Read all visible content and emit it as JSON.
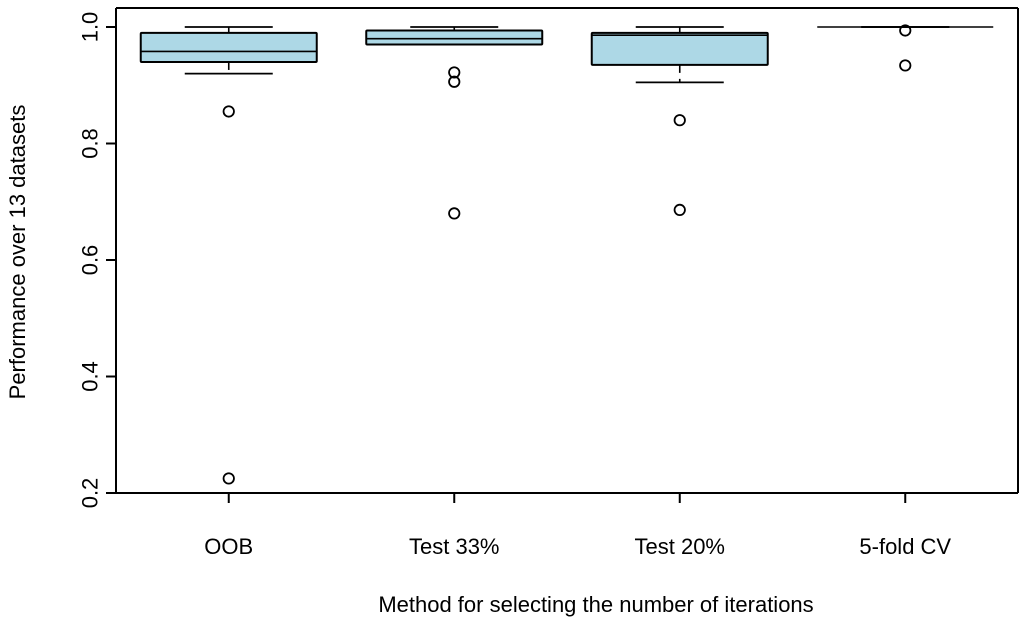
{
  "chart_data": {
    "type": "boxplot",
    "xlabel": "Method for selecting the number of iterations",
    "ylabel": "Performance over 13 datasets",
    "ylim": [
      0.2,
      1.0
    ],
    "yticks": [
      0.2,
      0.4,
      0.6,
      0.8,
      1.0
    ],
    "ytick_labels": [
      "0.2",
      "0.4",
      "0.6",
      "0.8",
      "1.0"
    ],
    "box_color": "#add8e6",
    "categories": [
      "OOB",
      "Test 33%",
      "Test 20%",
      "5-fold CV"
    ],
    "boxes": [
      {
        "label": "OOB",
        "q1": 0.94,
        "median": 0.958,
        "q3": 0.99,
        "whisker_low": 0.92,
        "whisker_high": 1.0,
        "outliers": [
          0.855,
          0.225
        ]
      },
      {
        "label": "Test 33%",
        "q1": 0.97,
        "median": 0.98,
        "q3": 0.994,
        "whisker_low": 0.97,
        "whisker_high": 1.0,
        "outliers": [
          0.922,
          0.906,
          0.68
        ]
      },
      {
        "label": "Test 20%",
        "q1": 0.935,
        "median": 0.986,
        "q3": 0.99,
        "whisker_low": 0.905,
        "whisker_high": 1.0,
        "outliers": [
          0.84,
          0.686
        ]
      },
      {
        "label": "5-fold CV",
        "q1": 1.0,
        "median": 1.0,
        "q3": 1.0,
        "whisker_low": 1.0,
        "whisker_high": 1.0,
        "outliers": [
          0.994,
          0.934
        ]
      }
    ]
  }
}
